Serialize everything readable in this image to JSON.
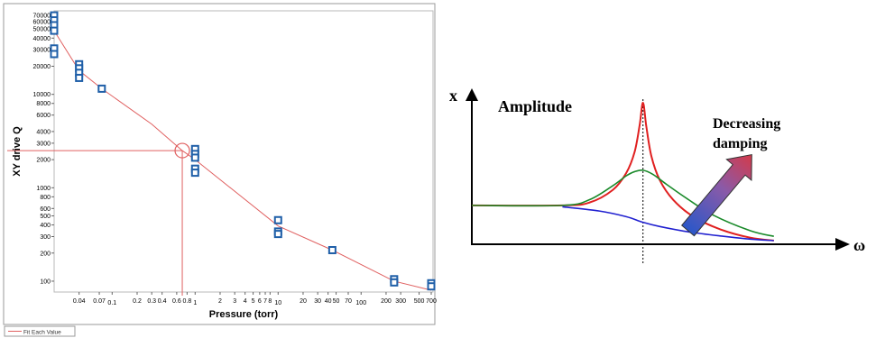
{
  "chart_data": [
    {
      "type": "scatter",
      "xlabel": "Pressure (torr)",
      "ylabel": "XY drive Q",
      "x_scale": "log",
      "y_scale": "log",
      "xlim": [
        0.02,
        700
      ],
      "ylim": [
        80,
        75000
      ],
      "x_ticks": [
        {
          "v": 0.04,
          "t": "0.04"
        },
        {
          "v": 0.07,
          "t": "0.07"
        },
        {
          "v": 0.1,
          "t": "0.1"
        },
        {
          "v": 0.2,
          "t": "0.2"
        },
        {
          "v": 0.3,
          "t": "0.3"
        },
        {
          "v": 0.4,
          "t": "0.4"
        },
        {
          "v": 0.6,
          "t": "0.6"
        },
        {
          "v": 0.8,
          "t": "0.8"
        },
        {
          "v": 1,
          "t": "1"
        },
        {
          "v": 2,
          "t": "2"
        },
        {
          "v": 3,
          "t": "3"
        },
        {
          "v": 4,
          "t": "4"
        },
        {
          "v": 5,
          "t": "5"
        },
        {
          "v": 6,
          "t": "6"
        },
        {
          "v": 7,
          "t": "7"
        },
        {
          "v": 8,
          "t": "8"
        },
        {
          "v": 10,
          "t": "10"
        },
        {
          "v": 20,
          "t": "20"
        },
        {
          "v": 30,
          "t": "30"
        },
        {
          "v": 40,
          "t": "40"
        },
        {
          "v": 50,
          "t": "50"
        },
        {
          "v": 70,
          "t": "70"
        },
        {
          "v": 100,
          "t": "100"
        },
        {
          "v": 200,
          "t": "200"
        },
        {
          "v": 300,
          "t": "300"
        },
        {
          "v": 500,
          "t": "500"
        },
        {
          "v": 700,
          "t": "700"
        }
      ],
      "y_ticks": [
        {
          "v": 100,
          "t": "100"
        },
        {
          "v": 200,
          "t": "200"
        },
        {
          "v": 300,
          "t": "300"
        },
        {
          "v": 400,
          "t": "400"
        },
        {
          "v": 500,
          "t": "500"
        },
        {
          "v": 600,
          "t": "600"
        },
        {
          "v": 800,
          "t": "800"
        },
        {
          "v": 1000,
          "t": "1000"
        },
        {
          "v": 2000,
          "t": "2000"
        },
        {
          "v": 3000,
          "t": "3000"
        },
        {
          "v": 4000,
          "t": "4000"
        },
        {
          "v": 6000,
          "t": "6000"
        },
        {
          "v": 8000,
          "t": "8000"
        },
        {
          "v": 10000,
          "t": "10000"
        },
        {
          "v": 20000,
          "t": "20000"
        },
        {
          "v": 30000,
          "t": "30000"
        },
        {
          "v": 40000,
          "t": "40000"
        },
        {
          "v": 50000,
          "t": "50000"
        },
        {
          "v": 60000,
          "t": "60000"
        },
        {
          "v": 70000,
          "t": "70000"
        }
      ],
      "points": [
        {
          "x": 0.02,
          "y": 70000
        },
        {
          "x": 0.02,
          "y": 62000
        },
        {
          "x": 0.02,
          "y": 55000
        },
        {
          "x": 0.02,
          "y": 48000
        },
        {
          "x": 0.02,
          "y": 31000
        },
        {
          "x": 0.02,
          "y": 27000
        },
        {
          "x": 0.04,
          "y": 21000
        },
        {
          "x": 0.04,
          "y": 19000
        },
        {
          "x": 0.04,
          "y": 17000
        },
        {
          "x": 0.04,
          "y": 15000
        },
        {
          "x": 0.075,
          "y": 11500
        },
        {
          "x": 1,
          "y": 2600
        },
        {
          "x": 1,
          "y": 2300
        },
        {
          "x": 1,
          "y": 2100
        },
        {
          "x": 1,
          "y": 1600
        },
        {
          "x": 1,
          "y": 1450
        },
        {
          "x": 10,
          "y": 450
        },
        {
          "x": 10,
          "y": 340
        },
        {
          "x": 10,
          "y": 320
        },
        {
          "x": 45,
          "y": 215
        },
        {
          "x": 250,
          "y": 105
        },
        {
          "x": 250,
          "y": 97
        },
        {
          "x": 700,
          "y": 95
        },
        {
          "x": 700,
          "y": 88
        }
      ],
      "fit_series": {
        "name": "Fit Each Value",
        "color": "#e06060",
        "x": [
          0.02,
          0.04,
          0.075,
          0.3,
          0.7,
          1,
          10,
          45,
          250,
          700
        ],
        "y": [
          48000,
          18000,
          11500,
          4800,
          2500,
          2000,
          390,
          215,
          100,
          80
        ]
      },
      "highlight": {
        "x": 0.7,
        "y": 2500,
        "color": "#e06060"
      },
      "legend": {
        "label": "Fit Each Value",
        "position": "bottom-left"
      },
      "marker_color": "#1f5fa8"
    },
    {
      "type": "line",
      "title": "Amplitude",
      "ylabel": "x",
      "xlabel": "ω",
      "annotation": "Decreasing damping",
      "annotation_lines": [
        "Decreasing",
        "damping"
      ],
      "xlim": [
        0,
        10
      ],
      "ylim": [
        0,
        10
      ],
      "resonance_x": 5.1,
      "series": [
        {
          "color": "#e02020",
          "x": [
            0,
            2.7,
            3.5,
            4.2,
            4.6,
            4.85,
            5.0,
            5.1,
            5.2,
            5.35,
            5.6,
            6.0,
            6.6,
            7.4,
            8.3,
            9.0
          ],
          "y": [
            2.7,
            2.7,
            2.9,
            3.8,
            5.0,
            6.5,
            8.4,
            10.0,
            8.3,
            6.2,
            4.5,
            3.1,
            1.9,
            1.0,
            0.4,
            0.2
          ]
        },
        {
          "color": "#1a8a2a",
          "x": [
            0,
            2.7,
            3.5,
            4.2,
            4.6,
            4.85,
            5.1,
            5.4,
            5.8,
            6.4,
            7.2,
            8.3,
            9.0
          ],
          "y": [
            2.7,
            2.7,
            3.1,
            4.1,
            4.8,
            5.1,
            5.2,
            4.9,
            4.2,
            3.2,
            2.0,
            0.9,
            0.5
          ]
        },
        {
          "color": "#2020d0",
          "x": [
            2.7,
            3.8,
            4.6,
            5.1,
            5.6,
            6.5,
            7.5,
            8.3,
            9.0
          ],
          "y": [
            2.6,
            2.3,
            1.9,
            1.5,
            1.2,
            0.8,
            0.5,
            0.3,
            0.2
          ]
        }
      ]
    }
  ]
}
